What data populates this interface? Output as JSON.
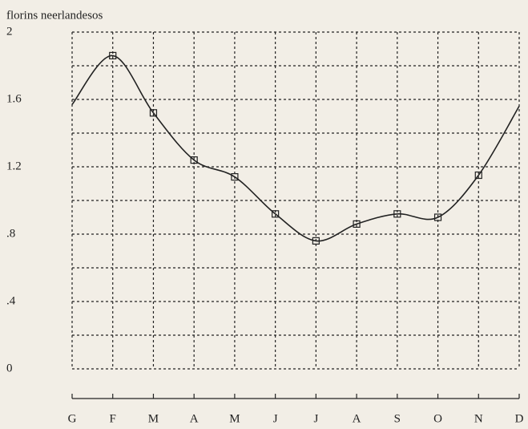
{
  "chart_data": {
    "type": "line",
    "title": "florins neerlandesos",
    "categories": [
      "G",
      "F",
      "M",
      "A",
      "M",
      "J",
      "J",
      "A",
      "S",
      "O",
      "N",
      "D"
    ],
    "values": [
      1.57,
      1.86,
      1.52,
      1.24,
      1.14,
      0.92,
      0.76,
      0.86,
      0.92,
      0.9,
      1.15,
      1.56
    ],
    "color": "#222222",
    "ylim": [
      0,
      2
    ],
    "yticks": [
      0,
      {
        "value": 0.4,
        "label": ".4"
      },
      {
        "value": 0.8,
        "label": ".8"
      },
      1.2,
      1.6,
      2
    ],
    "grid": true
  }
}
